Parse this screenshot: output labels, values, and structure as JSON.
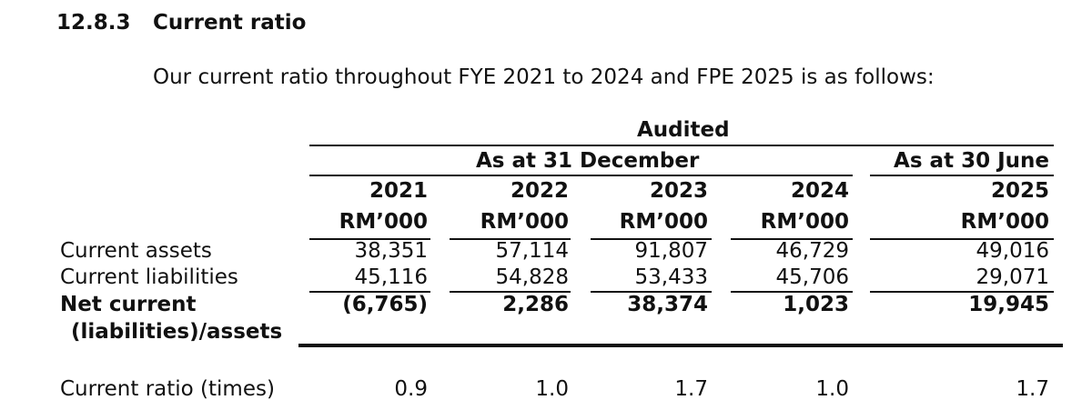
{
  "section": {
    "number": "12.8.3",
    "title": "Current ratio"
  },
  "intro": "Our current ratio throughout FYE 2021 to 2024 and FPE 2025 is as follows:",
  "table": {
    "group_header": "Audited",
    "subgroup_left": "As at 31 December",
    "subgroup_right": "As at 30 June",
    "years": [
      "2021",
      "2022",
      "2023",
      "2024",
      "2025"
    ],
    "unit": "RM’000",
    "rows": {
      "current_assets": {
        "label": "Current assets",
        "values": [
          "38,351",
          "57,114",
          "91,807",
          "46,729",
          "49,016"
        ]
      },
      "current_liabilities": {
        "label": "Current liabilities",
        "values": [
          "45,116",
          "54,828",
          "53,433",
          "45,706",
          "29,071"
        ]
      },
      "net_current": {
        "label_line1": "Net current",
        "label_line2": "(liabilities)/assets",
        "values": [
          "(6,765)",
          "2,286",
          "38,374",
          "1,023",
          "19,945"
        ]
      },
      "current_ratio": {
        "label": "Current ratio (times)",
        "values": [
          "0.9",
          "1.0",
          "1.7",
          "1.0",
          "1.7"
        ]
      }
    }
  }
}
